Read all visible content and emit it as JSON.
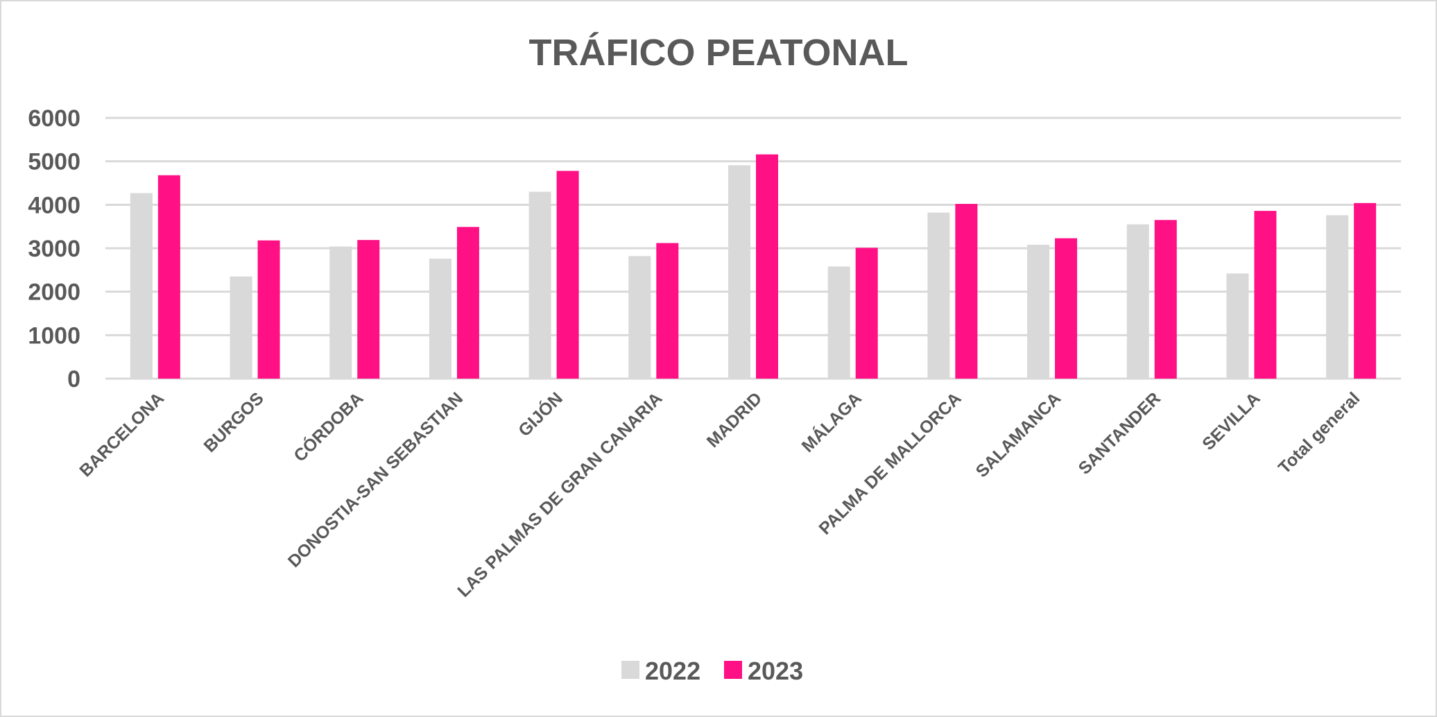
{
  "chart_data": {
    "type": "bar",
    "title": "TRÁFICO PEATONAL",
    "xlabel": "",
    "ylabel": "",
    "ylim": [
      0,
      6000
    ],
    "yticks": [
      0,
      1000,
      2000,
      3000,
      4000,
      5000,
      6000
    ],
    "grid": true,
    "legend_position": "bottom",
    "categories": [
      "BARCELONA",
      "BURGOS",
      "CÓRDOBA",
      "DONOSTIA-SAN SEBASTIAN",
      "GIJÓN",
      "LAS PALMAS DE GRAN CANARIA",
      "MADRID",
      "MÁLAGA",
      "PALMA DE MALLORCA",
      "SALAMANCA",
      "SANTANDER",
      "SEVILLA",
      "Total general"
    ],
    "series": [
      {
        "name": "2022",
        "color": "#d9d9d9",
        "values": [
          4270,
          2350,
          3040,
          2760,
          4300,
          2820,
          4910,
          2580,
          3820,
          3080,
          3550,
          2420,
          3760
        ]
      },
      {
        "name": "2023",
        "color": "#ff1085",
        "values": [
          4680,
          3180,
          3190,
          3490,
          4780,
          3120,
          5160,
          3010,
          4020,
          3230,
          3650,
          3860,
          4040
        ]
      }
    ]
  }
}
